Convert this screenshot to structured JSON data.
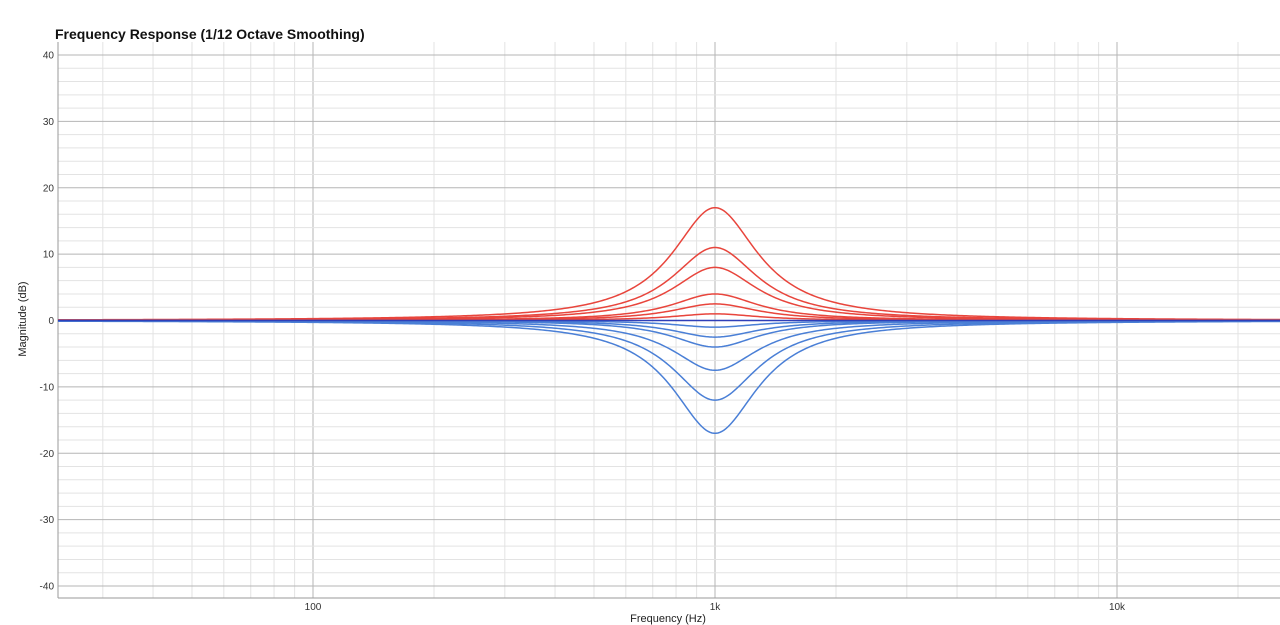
{
  "chart_data": {
    "type": "line",
    "title": "Frequency Response (1/12 Octave Smoothing)",
    "xlabel": "Frequency (Hz)",
    "ylabel": "Magnitude (dB)",
    "x_scale": "log",
    "xlim": [
      20,
      25000
    ],
    "ylim": [
      -42,
      42
    ],
    "x_ticks": [
      {
        "value": 100,
        "label": "100"
      },
      {
        "value": 1000,
        "label": "1k"
      },
      {
        "value": 10000,
        "label": "10k"
      }
    ],
    "y_ticks": [
      40,
      30,
      20,
      10,
      0,
      -10,
      -20,
      -30,
      -40
    ],
    "grid": true,
    "legend": "none",
    "center_frequency": 1000,
    "series": [
      {
        "gain_db": 17,
        "color": "#e8453c"
      },
      {
        "gain_db": 11,
        "color": "#e8453c"
      },
      {
        "gain_db": 8,
        "color": "#e8453c"
      },
      {
        "gain_db": 4,
        "color": "#e8453c"
      },
      {
        "gain_db": 2.5,
        "color": "#e8453c"
      },
      {
        "gain_db": 1,
        "color": "#e8453c"
      },
      {
        "gain_db": -1,
        "color": "#4a7fd6"
      },
      {
        "gain_db": -2.5,
        "color": "#4a7fd6"
      },
      {
        "gain_db": -4,
        "color": "#4a7fd6"
      },
      {
        "gain_db": -7.5,
        "color": "#4a7fd6"
      },
      {
        "gain_db": -12,
        "color": "#4a7fd6"
      },
      {
        "gain_db": -17,
        "color": "#4a7fd6"
      },
      {
        "gain_db": 0,
        "color": "#2f3fb8"
      }
    ]
  }
}
